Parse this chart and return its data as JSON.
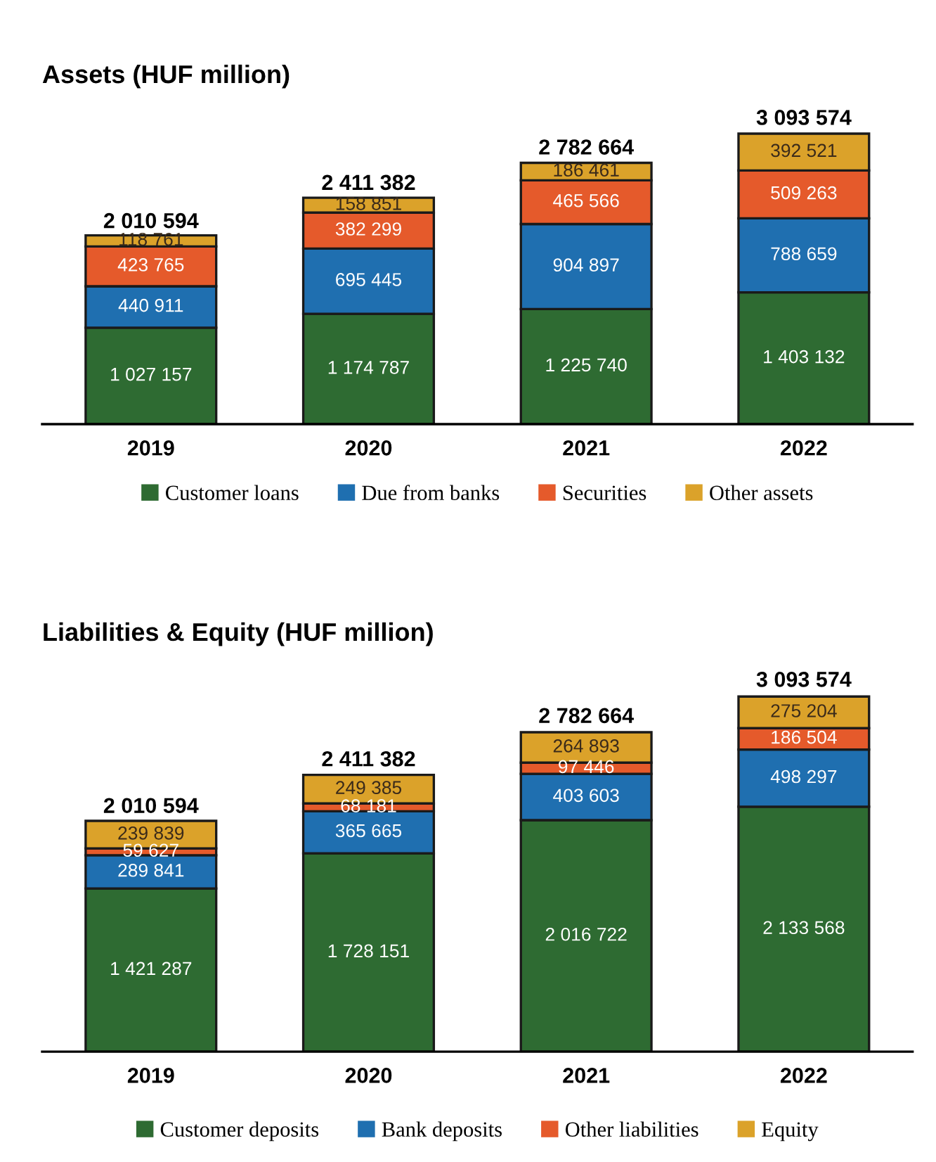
{
  "chart_data": [
    {
      "type": "bar",
      "title": "Assets (HUF million)",
      "categories": [
        "2019",
        "2020",
        "2021",
        "2022"
      ],
      "stacked": true,
      "legend": "bottom",
      "tick_labels": "x",
      "grid": false,
      "series": [
        {
          "name": "Customer loans",
          "color": "#2e6b32",
          "values": [
            1027157,
            1174787,
            1225740,
            1403132
          ],
          "value_labels": [
            "1 027 157",
            "1 174 787",
            "1 225 740",
            "1 403 132"
          ]
        },
        {
          "name": "Due from banks",
          "color": "#1f6fb0",
          "values": [
            440911,
            695445,
            904897,
            788659
          ],
          "value_labels": [
            "440 911",
            "695 445",
            "904 897",
            "788 659"
          ]
        },
        {
          "name": "Securities",
          "color": "#e55a2b",
          "values": [
            423765,
            382299,
            465566,
            509263
          ],
          "value_labels": [
            "423 765",
            "382 299",
            "465 566",
            "509 263"
          ]
        },
        {
          "name": "Other assets",
          "color": "#dba22a",
          "values": [
            118761,
            158851,
            186461,
            392521
          ],
          "value_labels": [
            "118 761",
            "158 851",
            "186 461",
            "392 521"
          ]
        }
      ],
      "totals": [
        "2 010 594",
        "2 411 382",
        "2 782 664",
        "3 093 574"
      ]
    },
    {
      "type": "bar",
      "title": "Liabilities & Equity (HUF million)",
      "categories": [
        "2019",
        "2020",
        "2021",
        "2022"
      ],
      "stacked": true,
      "legend": "bottom",
      "tick_labels": "x",
      "grid": false,
      "series": [
        {
          "name": "Customer deposits",
          "color": "#2e6b32",
          "values": [
            1421287,
            1728151,
            2016722,
            2133568
          ],
          "value_labels": [
            "1 421 287",
            "1 728 151",
            "2 016 722",
            "2 133 568"
          ]
        },
        {
          "name": "Bank deposits",
          "color": "#1f6fb0",
          "values": [
            289841,
            365665,
            403603,
            498297
          ],
          "value_labels": [
            "289 841",
            "365 665",
            "403 603",
            "498 297"
          ]
        },
        {
          "name": "Other liabilities",
          "color": "#e55a2b",
          "values": [
            59627,
            68181,
            97446,
            186504
          ],
          "value_labels": [
            "59 627",
            "68 181",
            "97 446",
            "186 504"
          ]
        },
        {
          "name": "Equity",
          "color": "#dba22a",
          "values": [
            239839,
            249385,
            264893,
            275204
          ],
          "value_labels": [
            "239 839",
            "249 385",
            "264 893",
            "275 204"
          ]
        }
      ],
      "totals": [
        "2 010 594",
        "2 411 382",
        "2 782 664",
        "3 093 574"
      ]
    }
  ]
}
